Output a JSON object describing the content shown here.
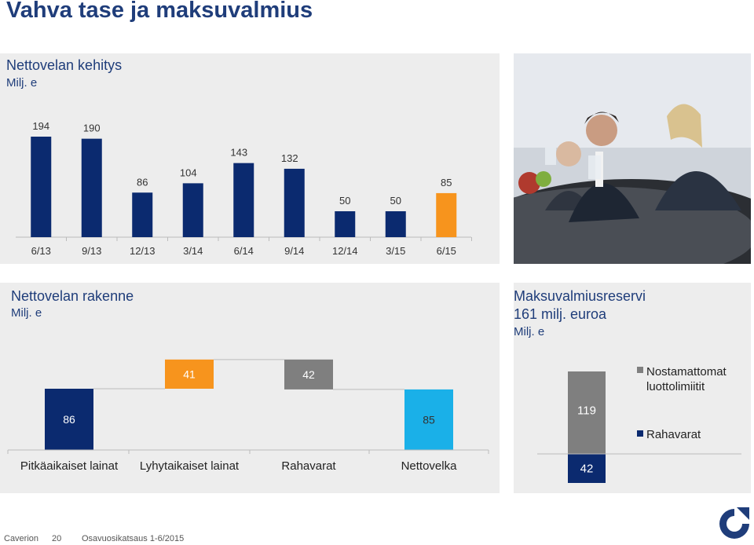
{
  "slide_title": "Vahva tase ja maksuvalmius",
  "net_debt_trend": {
    "title": "Nettovelan kehitys",
    "unit": "Milj. e"
  },
  "net_debt_structure": {
    "title": "Nettovelan rakenne",
    "unit": "Milj. e",
    "categories": [
      "Pitkäaikaiset lainat",
      "Lyhytaikaiset lainat",
      "Rahavarat",
      "Nettovelka"
    ],
    "value_labels": [
      "86",
      "41",
      "42",
      "85"
    ]
  },
  "liquidity_reserve": {
    "title": "Maksuvalmiusreservi",
    "total": "161 milj. euroa",
    "unit": "Milj. e",
    "legend": [
      "Nostamattomat luottolimiitit",
      "Rahavarat"
    ],
    "value_labels": [
      "119",
      "42"
    ]
  },
  "photo": {
    "description_icon": "meeting-photo"
  },
  "footer": {
    "company": "Caverion",
    "page": "20",
    "doc": "Osavuosikatsaus 1-6/2015"
  },
  "colors": {
    "navy": "#0b2a6f",
    "orange": "#f7941d",
    "grey": "#7f7f7f",
    "cyan": "#1ab0e8",
    "title": "#1f3d7a"
  },
  "chart_data": [
    {
      "type": "bar",
      "title": "Nettovelan kehitys",
      "ylabel": "Milj. e",
      "categories": [
        "6/13",
        "9/13",
        "12/13",
        "3/14",
        "6/14",
        "9/14",
        "12/14",
        "3/15",
        "6/15"
      ],
      "values": [
        194,
        190,
        86,
        104,
        143,
        132,
        50,
        50,
        85
      ],
      "highlight_last": true,
      "ylim": [
        0,
        200
      ],
      "grid": false
    },
    {
      "type": "bar",
      "title": "Nettovelan rakenne",
      "ylabel": "Milj. e",
      "categories": [
        "Pitkäaikaiset lainat",
        "Lyhytaikaiset lainat",
        "Rahavarat",
        "Nettovelka"
      ],
      "values": [
        86,
        41,
        -42,
        85
      ],
      "subtype": "waterfall"
    },
    {
      "type": "bar",
      "title": "Maksuvalmiusreservi",
      "ylabel": "Milj. e",
      "subtype": "stacked",
      "categories": [
        ""
      ],
      "series": [
        {
          "name": "Rahavarat",
          "values": [
            42
          ]
        },
        {
          "name": "Nostamattomat luottolimiitit",
          "values": [
            119
          ]
        }
      ]
    }
  ]
}
